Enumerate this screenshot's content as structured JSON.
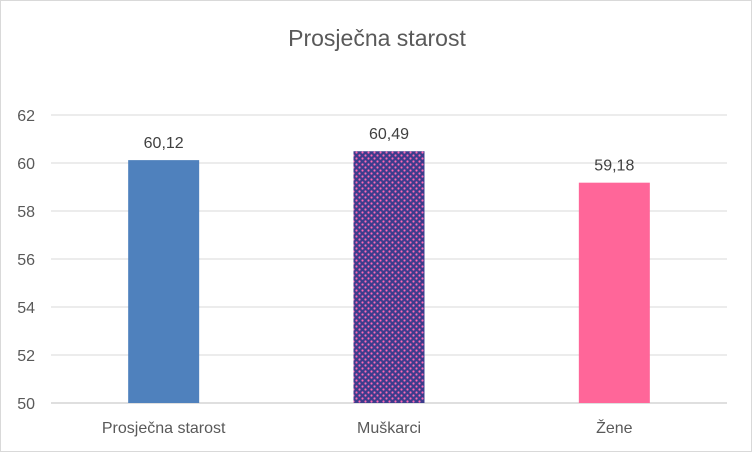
{
  "chart_data": {
    "type": "bar",
    "title": "Prosječna starost",
    "categories": [
      "Prosječna starost",
      "Muškarci",
      "Žene"
    ],
    "values": [
      60.12,
      60.49,
      59.18
    ],
    "data_labels": [
      "60,12",
      "60,49",
      "59,18"
    ],
    "ylim": [
      50,
      62
    ],
    "y_ticks": [
      50,
      52,
      54,
      56,
      58,
      60,
      62
    ],
    "y_tick_labels": [
      "50",
      "52",
      "54",
      "56",
      "58",
      "60",
      "62"
    ],
    "grid": true,
    "legend": "none",
    "bar_colors": [
      "#4f81bd",
      "#3c3c8c",
      "#ff6699"
    ],
    "bar_pattern": [
      null,
      "dotted-grid-pattern",
      null
    ],
    "pattern_dot_color": "#ff69b4"
  }
}
